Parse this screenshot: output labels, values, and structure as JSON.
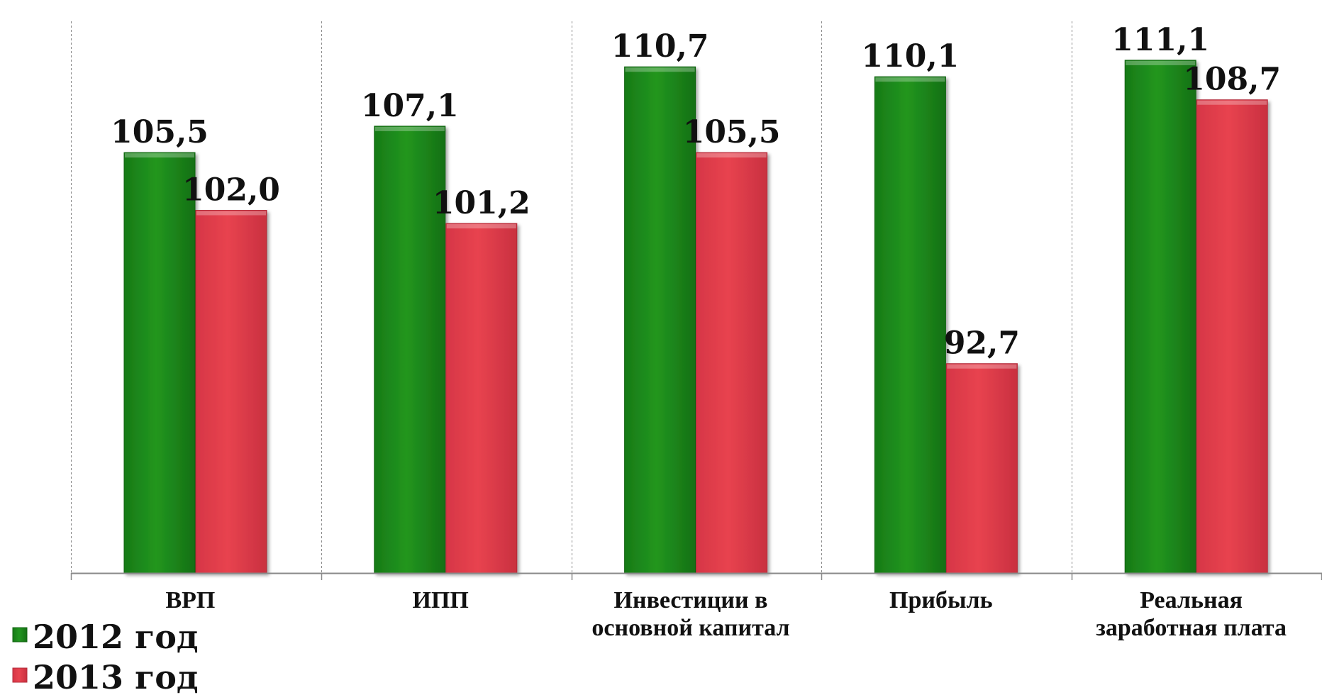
{
  "chart_data": {
    "type": "bar",
    "categories": [
      [
        "ВРП"
      ],
      [
        "ИПП"
      ],
      [
        "Инвестиции в",
        "основной капитал"
      ],
      [
        "Прибыль"
      ],
      [
        "Реальная",
        "заработная плата"
      ]
    ],
    "series": [
      {
        "name": "2012 год",
        "color": "#1e8c1e",
        "values": [
          105.5,
          107.1,
          110.7,
          110.1,
          111.1
        ],
        "labels": [
          "105,5",
          "107,1",
          "110,7",
          "110,1",
          "111,1"
        ]
      },
      {
        "name": "2013 год",
        "color": "#e03c4c",
        "values": [
          102.0,
          101.2,
          105.5,
          92.7,
          108.7
        ],
        "labels": [
          "102,0",
          "101,2",
          "105,5",
          "92,7",
          "108,7"
        ]
      }
    ],
    "ylim": [
      80,
      112.5
    ],
    "grid": "vertical-dashed-separators",
    "legend_position": "bottom-left"
  }
}
